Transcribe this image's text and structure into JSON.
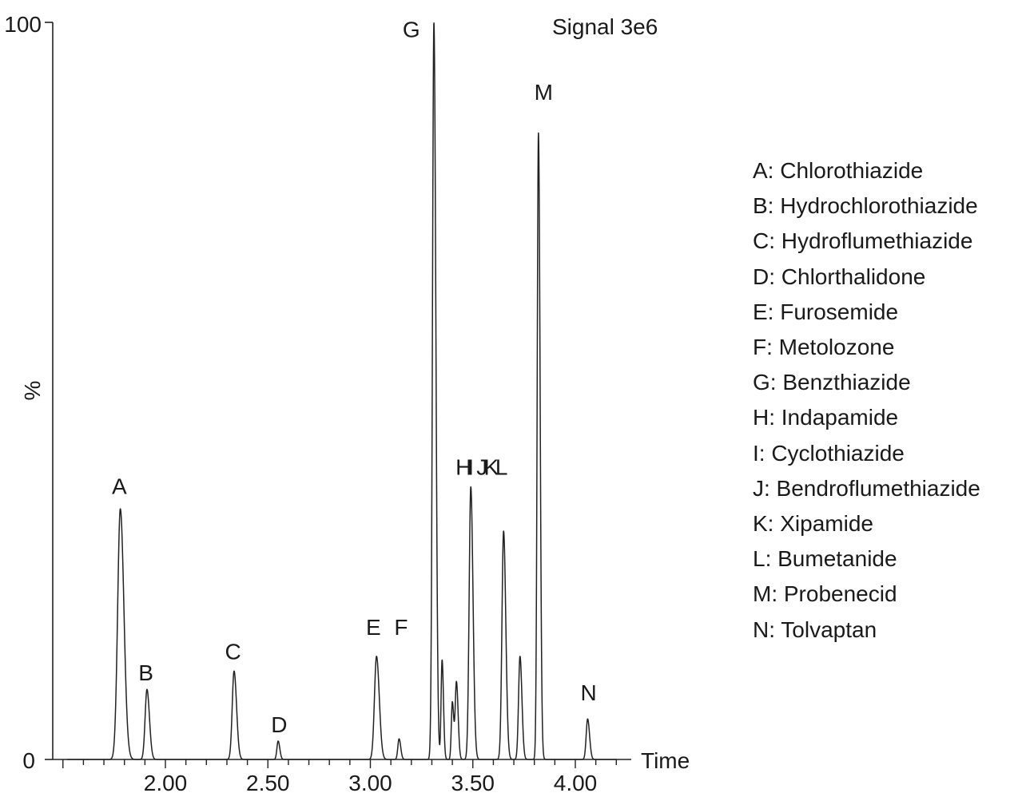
{
  "chart_data": {
    "type": "line",
    "title": "",
    "annotation": "Signal 3e6",
    "xlabel": "Time",
    "ylabel": "%",
    "xlim": [
      1.5,
      4.2
    ],
    "ylim": [
      0,
      100
    ],
    "x_ticks": [
      "2.00",
      "2.50",
      "3.00",
      "3.50",
      "4.00"
    ],
    "y_ticks": [
      "0",
      "100"
    ],
    "grid": false,
    "legend_position": "right",
    "line_color": "#222222",
    "peaks": [
      {
        "label": "A",
        "time": 1.78,
        "height": 34.0,
        "width": 0.013
      },
      {
        "label": "B",
        "time": 1.91,
        "height": 9.5,
        "width": 0.009
      },
      {
        "label": "C",
        "time": 2.335,
        "height": 12.0,
        "width": 0.009
      },
      {
        "label": "D",
        "time": 2.55,
        "height": 2.5,
        "width": 0.006
      },
      {
        "label": "E",
        "time": 3.03,
        "height": 14.0,
        "width": 0.01
      },
      {
        "label": "F",
        "time": 3.14,
        "height": 2.8,
        "width": 0.006
      },
      {
        "label": "G",
        "time": 3.31,
        "height": 100.0,
        "width": 0.007
      },
      {
        "label": "H",
        "time": 3.35,
        "height": 13.5,
        "width": 0.005
      },
      {
        "label": "I",
        "time": 3.4,
        "height": 7.8,
        "width": 0.005
      },
      {
        "label": "J",
        "time": 3.42,
        "height": 10.5,
        "width": 0.006
      },
      {
        "label": "K",
        "time": 3.49,
        "height": 37.0,
        "width": 0.008
      },
      {
        "label": "L",
        "time": 3.65,
        "height": 31.0,
        "width": 0.008
      },
      {
        "label": "M",
        "time": 3.73,
        "height": 14.0,
        "width": 0.007
      },
      {
        "label": "N",
        "time": 3.82,
        "height": 85.0,
        "width": 0.006
      },
      {
        "label": "",
        "time": 4.06,
        "height": 5.5,
        "width": 0.007
      }
    ],
    "peak_labels": [
      {
        "text": "A",
        "time": 1.775,
        "level": 36.0
      },
      {
        "text": "B",
        "time": 1.905,
        "level": 10.7
      },
      {
        "text": "C",
        "time": 2.33,
        "level": 13.6
      },
      {
        "text": "D",
        "time": 2.555,
        "level": 3.7
      },
      {
        "text": "E",
        "time": 3.015,
        "level": 16.9
      },
      {
        "text": "F",
        "time": 3.15,
        "level": 16.9
      },
      {
        "text": "G",
        "time": 3.2,
        "level": 98.0
      },
      {
        "text": "H",
        "time": 3.455,
        "level": 38.6
      },
      {
        "text": "I",
        "time": 3.49,
        "level": 38.6
      },
      {
        "text": "J",
        "time": 3.545,
        "level": 38.6
      },
      {
        "text": "K",
        "time": 3.59,
        "level": 38.6
      },
      {
        "text": "L",
        "time": 3.64,
        "level": 38.6
      },
      {
        "text": "M",
        "time": 3.845,
        "level": 89.5
      },
      {
        "text": "N",
        "time": 4.065,
        "level": 8.0
      }
    ],
    "legend": [
      "A:  Chlorothiazide",
      "B: Hydrochlorothiazide",
      "C:  Hydroflumethiazide",
      "D:  Chlorthalidone",
      "E: Furosemide",
      "F:  Metolozone",
      "G:  Benzthiazide",
      "H:  Indapamide",
      "I:  Cyclothiazide",
      "J:  Bendroflumethiazide",
      "K:  Xipamide",
      "L: Bumetanide",
      "M: Probenecid",
      "N:  Tolvaptan"
    ]
  }
}
